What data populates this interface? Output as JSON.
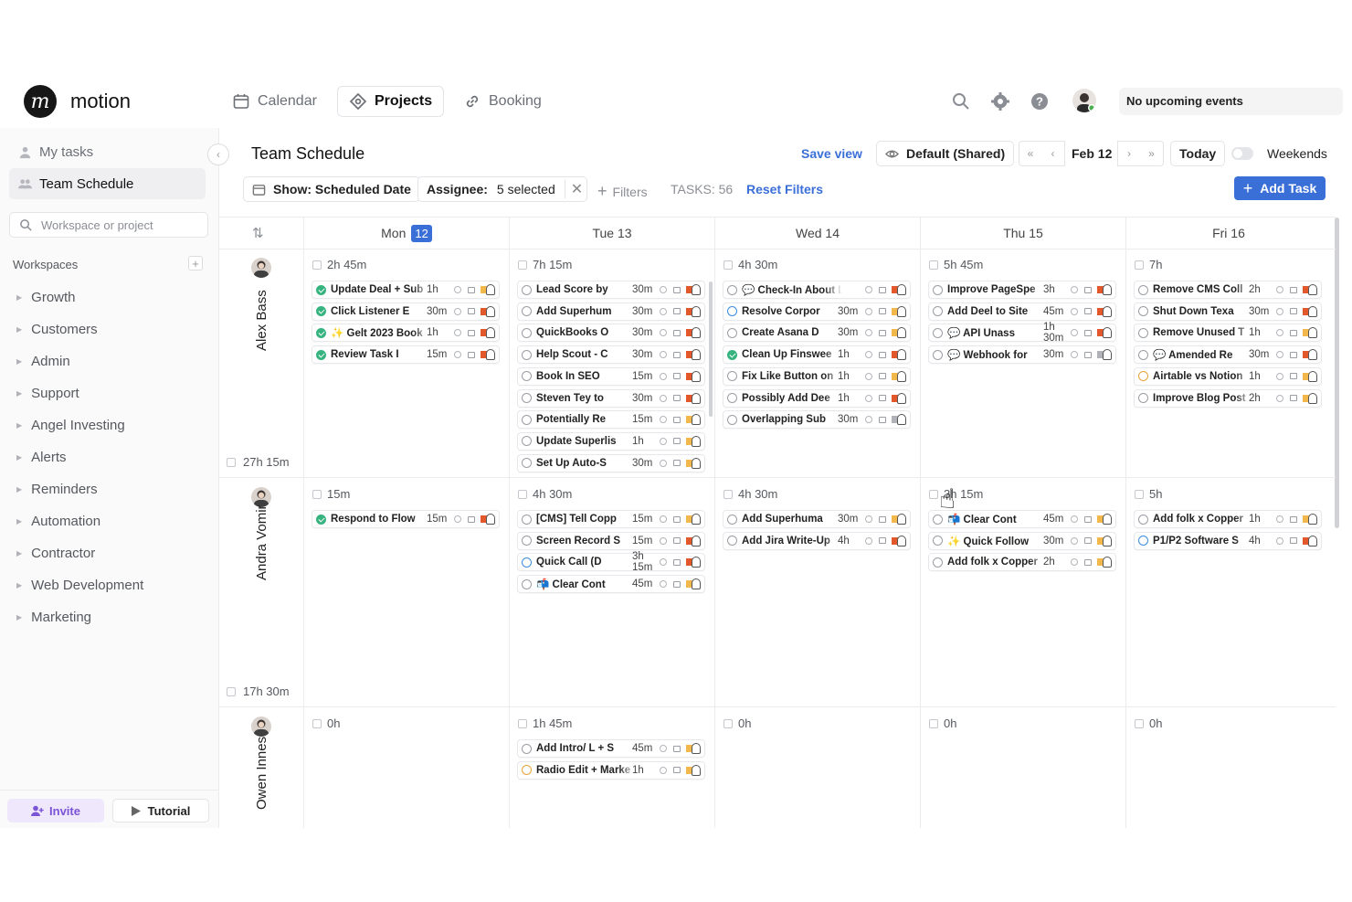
{
  "app": {
    "brand": "motion"
  },
  "nav": {
    "calendar": "Calendar",
    "projects": "Projects",
    "booking": "Booking",
    "upcoming": "No upcoming events"
  },
  "sidebar": {
    "my_tasks": "My tasks",
    "team_schedule": "Team Schedule",
    "search_placeholder": "Workspace or project",
    "workspaces_label": "Workspaces",
    "workspaces": [
      "Growth",
      "Customers",
      "Admin",
      "Support",
      "Angel Investing",
      "Alerts",
      "Reminders",
      "Automation",
      "Contractor",
      "Web Development",
      "Marketing"
    ],
    "invite": "Invite",
    "tutorial": "Tutorial"
  },
  "header": {
    "title": "Team Schedule",
    "save_view": "Save view",
    "view": "Default (Shared)",
    "date": "Feb 12",
    "today": "Today",
    "weekends": "Weekends",
    "show": "Show: Scheduled Date",
    "assignee_label": "Assignee:",
    "assignee_value": "5 selected",
    "filters": "Filters",
    "tasks": "TASKS: 56",
    "reset": "Reset Filters",
    "add_task": "Add Task"
  },
  "days": [
    {
      "label": "Mon",
      "badge": "12"
    },
    {
      "label": "Tue 13"
    },
    {
      "label": "Wed 14"
    },
    {
      "label": "Thu 15"
    },
    {
      "label": "Fri 16"
    }
  ],
  "people": [
    {
      "name": "Alex Bass",
      "total": "27h 15m",
      "days": [
        {
          "dur": "2h 45m",
          "tasks": [
            {
              "n": "Update Deal + Sub",
              "t": "1h",
              "s": "done",
              "f": "#f2b84b"
            },
            {
              "n": "Click Listener E",
              "t": "30m",
              "s": "done",
              "f": "#e2582b"
            },
            {
              "n": "✨ Gelt 2023 Book",
              "t": "1h",
              "s": "done",
              "f": "#e2582b"
            },
            {
              "n": "Review Task I",
              "t": "15m",
              "s": "done",
              "f": "#e2582b"
            }
          ]
        },
        {
          "dur": "7h 15m",
          "tasks": [
            {
              "n": "Lead Score by",
              "t": "30m",
              "s": "",
              "f": "#e2582b"
            },
            {
              "n": "Add Superhum",
              "t": "30m",
              "s": "",
              "f": "#e2582b"
            },
            {
              "n": "QuickBooks O",
              "t": "30m",
              "s": "",
              "f": "#e2582b"
            },
            {
              "n": "Help Scout - C",
              "t": "30m",
              "s": "",
              "f": "#e2582b"
            },
            {
              "n": "Book In SEO",
              "t": "15m",
              "s": "",
              "f": "#e2582b"
            },
            {
              "n": "Steven Tey to",
              "t": "30m",
              "s": "",
              "f": "#e2582b"
            },
            {
              "n": "Potentially Re",
              "t": "15m",
              "s": "",
              "f": "#f2b84b"
            },
            {
              "n": "Update Superlis",
              "t": "1h",
              "s": "",
              "f": "#f2b84b"
            },
            {
              "n": "Set Up Auto-S",
              "t": "30m",
              "s": "",
              "f": "#f2b84b"
            }
          ]
        },
        {
          "dur": "4h 30m",
          "tasks": [
            {
              "n": "💬 Check-In About Lo",
              "t": "",
              "s": "",
              "f": "#e2582b"
            },
            {
              "n": "Resolve Corpor",
              "t": "30m",
              "s": "blue",
              "f": "#f2b84b"
            },
            {
              "n": "Create Asana D",
              "t": "30m",
              "s": "",
              "f": "#f2b84b"
            },
            {
              "n": "Clean Up Finswee",
              "t": "1h",
              "s": "done",
              "f": "#e2582b"
            },
            {
              "n": "Fix Like Button on",
              "t": "1h",
              "s": "",
              "f": "#f2b84b"
            },
            {
              "n": "Possibly Add Dee",
              "t": "1h",
              "s": "",
              "f": "#e2582b"
            },
            {
              "n": "Overlapping Sub",
              "t": "30m",
              "s": "",
              "f": "#b0b2b8"
            }
          ]
        },
        {
          "dur": "5h 45m",
          "tasks": [
            {
              "n": "Improve PageSpe",
              "t": "3h",
              "s": "",
              "f": "#e2582b"
            },
            {
              "n": "Add Deel to Site",
              "t": "45m",
              "s": "",
              "f": "#e2582b"
            },
            {
              "n": "💬 API Unass",
              "t": "1h 30m",
              "s": "",
              "f": "#e2582b"
            },
            {
              "n": "💬 Webhook for",
              "t": "30m",
              "s": "",
              "f": "#b0b2b8"
            }
          ]
        },
        {
          "dur": "7h",
          "tasks": [
            {
              "n": "Remove CMS Coll",
              "t": "2h",
              "s": "",
              "f": "#e2582b"
            },
            {
              "n": "Shut Down Texa",
              "t": "30m",
              "s": "",
              "f": "#e2582b"
            },
            {
              "n": "Remove Unused T",
              "t": "1h",
              "s": "",
              "f": "#f2b84b"
            },
            {
              "n": "💬 Amended Re",
              "t": "30m",
              "s": "",
              "f": "#e2582b"
            },
            {
              "n": "Airtable vs Notion",
              "t": "1h",
              "s": "yellow",
              "f": "#f2b84b"
            },
            {
              "n": "Improve Blog Post",
              "t": "2h",
              "s": "",
              "f": "#f2b84b"
            }
          ]
        }
      ]
    },
    {
      "name": "Andra Vomir",
      "total": "17h 30m",
      "days": [
        {
          "dur": "15m",
          "tasks": [
            {
              "n": "Respond to Flow",
              "t": "15m",
              "s": "done",
              "f": "#e2582b"
            }
          ]
        },
        {
          "dur": "4h 30m",
          "tasks": [
            {
              "n": "[CMS] Tell Copp",
              "t": "15m",
              "s": "",
              "f": "#f2b84b"
            },
            {
              "n": "Screen Record S",
              "t": "15m",
              "s": "",
              "f": "#e2582b"
            },
            {
              "n": "Quick Call (D",
              "t": "3h 15m",
              "s": "blue",
              "f": "#e2582b"
            },
            {
              "n": "📬 Clear Cont",
              "t": "45m",
              "s": "",
              "f": "#f2b84b"
            }
          ]
        },
        {
          "dur": "4h 30m",
          "tasks": [
            {
              "n": "Add Superhuma",
              "t": "30m",
              "s": "",
              "f": "#f2b84b"
            },
            {
              "n": "Add Jira Write-Up",
              "t": "4h",
              "s": "",
              "f": "#e2582b"
            }
          ]
        },
        {
          "dur": "3h 15m",
          "tasks": [
            {
              "n": "📬 Clear Cont",
              "t": "45m",
              "s": "",
              "f": "#f2b84b"
            },
            {
              "n": "✨ Quick Follow",
              "t": "30m",
              "s": "",
              "f": "#f2b84b"
            },
            {
              "n": "Add folk x Copper",
              "t": "2h",
              "s": "",
              "f": "#f2b84b"
            }
          ]
        },
        {
          "dur": "5h",
          "tasks": [
            {
              "n": "Add folk x Copper",
              "t": "1h",
              "s": "",
              "f": "#f2b84b"
            },
            {
              "n": "P1/P2 Software S",
              "t": "4h",
              "s": "blue",
              "f": "#e2582b"
            }
          ]
        }
      ]
    },
    {
      "name": "Owen Innes",
      "total": "",
      "days": [
        {
          "dur": "0h",
          "tasks": []
        },
        {
          "dur": "1h 45m",
          "tasks": [
            {
              "n": "Add Intro/ L + S",
              "t": "45m",
              "s": "",
              "f": "#f2b84b"
            },
            {
              "n": "Radio Edit + Marke",
              "t": "1h",
              "s": "yellow",
              "f": "#f2b84b"
            }
          ]
        },
        {
          "dur": "0h",
          "tasks": []
        },
        {
          "dur": "0h",
          "tasks": []
        },
        {
          "dur": "0h",
          "tasks": []
        }
      ]
    }
  ]
}
